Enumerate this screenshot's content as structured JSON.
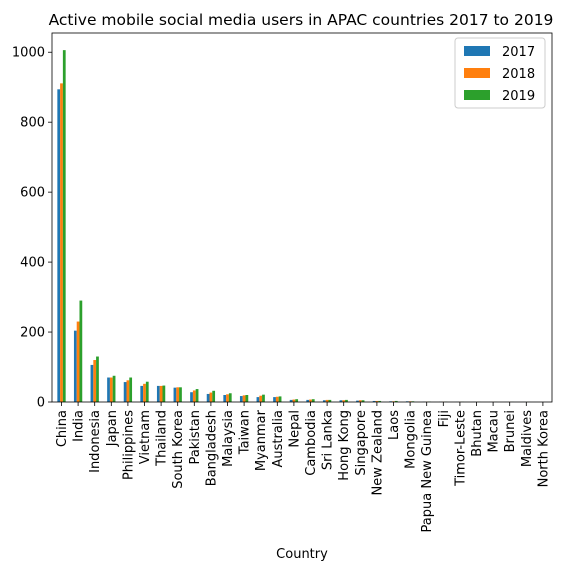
{
  "chart_data": {
    "type": "bar",
    "title": "Active mobile social media users in APAC countries 2017 to 2019",
    "xlabel": "Country",
    "ylabel": "",
    "ylim": [
      0,
      1055
    ],
    "yticks": [
      0,
      200,
      400,
      600,
      800,
      1000
    ],
    "grid": false,
    "legend_position": "top-right",
    "categories": [
      "China",
      "India",
      "Indonesia",
      "Japan",
      "Philippines",
      "Vietnam",
      "Thailand",
      "South Korea",
      "Pakistan",
      "Bangladesh",
      "Malaysia",
      "Taiwan",
      "Myanmar",
      "Australia",
      "Nepal",
      "Cambodia",
      "Sri Lanka",
      "Hong Kong",
      "Singapore",
      "New Zealand",
      "Laos",
      "Mongolia",
      "Papua New Guinea",
      "Fiji",
      "Timor-Leste",
      "Bhutan",
      "Macau",
      "Brunei",
      "Maldives",
      "North Korea"
    ],
    "series": [
      {
        "name": "2017",
        "color": "#1f77b4",
        "values": [
          894,
          204,
          106,
          70,
          57,
          46,
          46,
          41,
          28,
          23,
          20,
          17,
          14,
          14,
          6,
          6,
          5,
          5,
          4,
          3,
          2,
          2,
          0.7,
          0.5,
          0.3,
          0.3,
          0.2,
          0.2,
          0.2,
          0
        ]
      },
      {
        "name": "2018",
        "color": "#ff7f0e",
        "values": [
          911,
          230,
          120,
          70,
          62,
          52,
          46,
          42,
          33,
          27,
          22,
          19,
          18,
          15,
          7,
          7,
          6,
          5,
          5,
          3,
          2,
          2,
          0.8,
          0.6,
          0.4,
          0.3,
          0.3,
          0.3,
          0.2,
          0
        ]
      },
      {
        "name": "2019",
        "color": "#2ca02c",
        "values": [
          1006,
          290,
          130,
          75,
          70,
          58,
          47,
          42,
          37,
          32,
          25,
          20,
          21,
          16,
          8,
          8,
          6,
          6,
          5,
          3,
          3,
          2,
          1,
          0.6,
          0.5,
          0.4,
          0.3,
          0.3,
          0.3,
          0
        ]
      }
    ]
  }
}
